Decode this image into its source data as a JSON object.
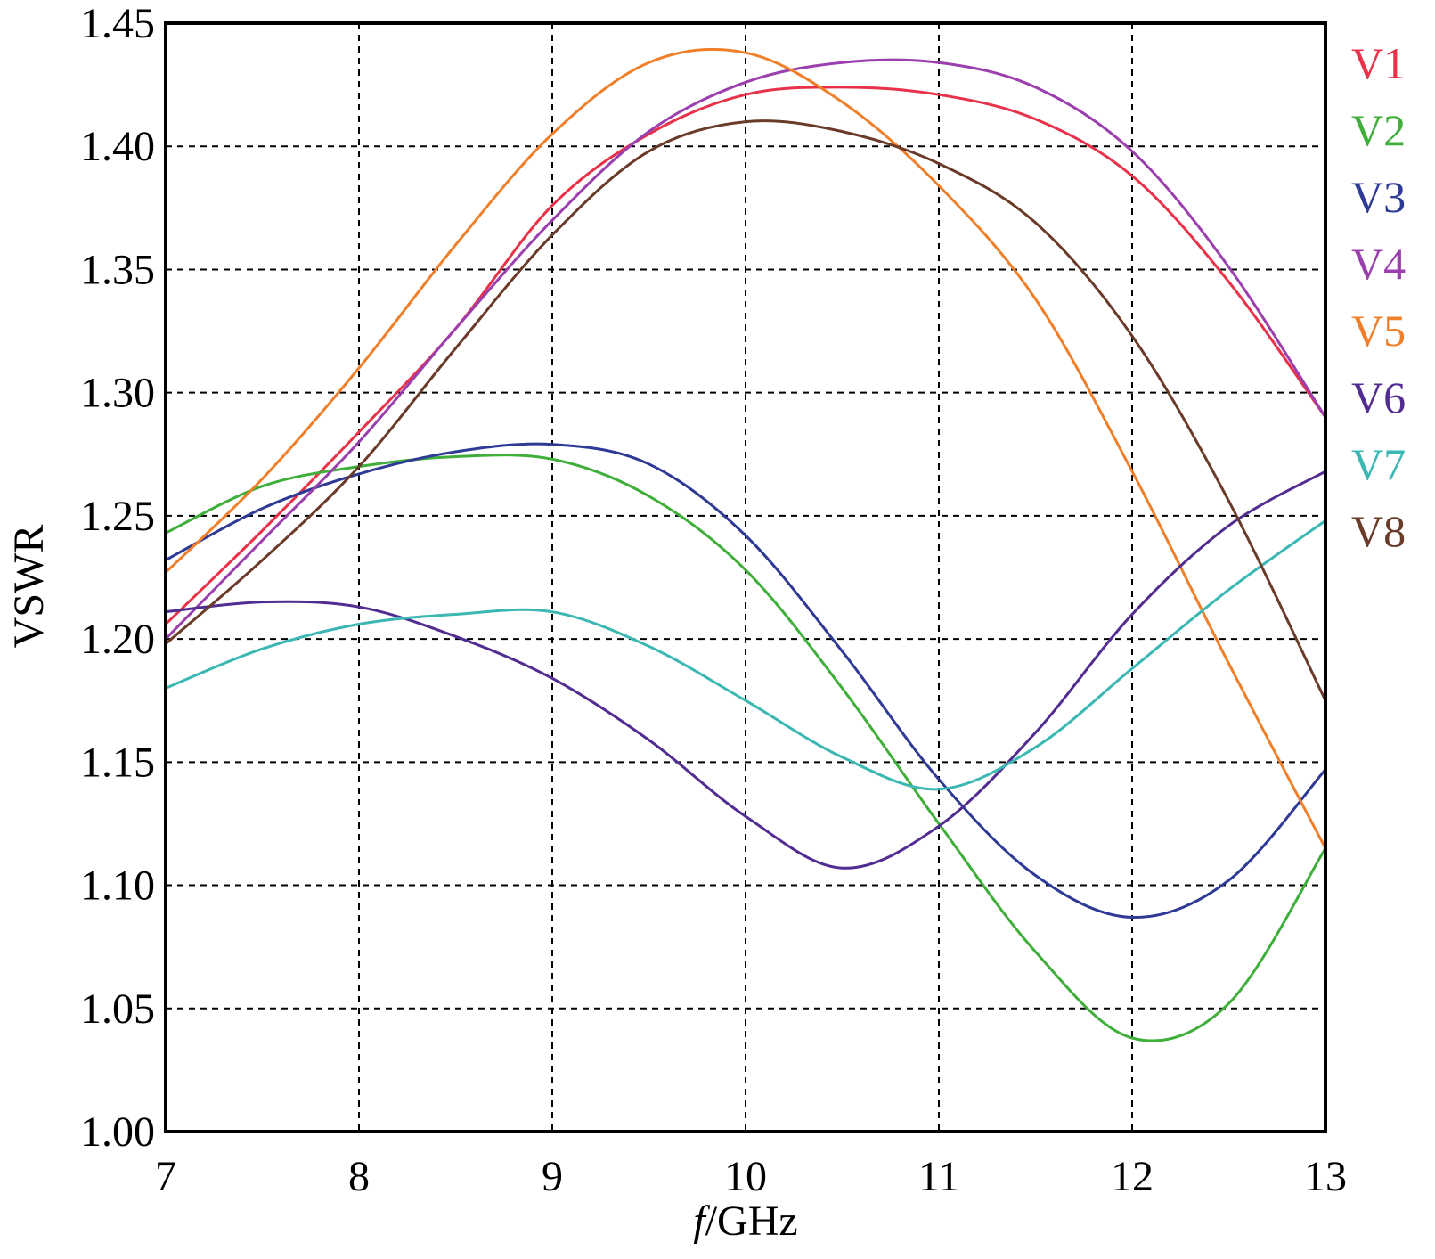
{
  "chart_data": {
    "type": "line",
    "title": "",
    "xlabel_italic": "f",
    "xlabel_rest": "/GHz",
    "ylabel": "VSWR",
    "xlim": [
      7,
      13
    ],
    "ylim": [
      1.0,
      1.45
    ],
    "grid": true,
    "legend_placement": "right",
    "x_ticks": [
      "7",
      "8",
      "9",
      "10",
      "11",
      "12",
      "13"
    ],
    "y_ticks": [
      "1.00",
      "1.05",
      "1.10",
      "1.15",
      "1.20",
      "1.25",
      "1.30",
      "1.35",
      "1.40",
      "1.45"
    ],
    "x": [
      7.0,
      7.5,
      8.0,
      8.5,
      9.0,
      9.5,
      10.0,
      10.5,
      11.0,
      11.5,
      12.0,
      12.5,
      13.0
    ],
    "series": [
      {
        "name": "V1",
        "color": "#e8324a",
        "values": [
          1.206,
          1.244,
          1.284,
          1.326,
          1.376,
          1.405,
          1.421,
          1.424,
          1.421,
          1.411,
          1.388,
          1.345,
          1.29
        ]
      },
      {
        "name": "V2",
        "color": "#3fae3a",
        "values": [
          1.243,
          1.262,
          1.27,
          1.274,
          1.273,
          1.258,
          1.228,
          1.18,
          1.125,
          1.073,
          1.038,
          1.052,
          1.115
        ]
      },
      {
        "name": "V3",
        "color": "#2e3a95",
        "values": [
          1.232,
          1.253,
          1.267,
          1.276,
          1.279,
          1.271,
          1.242,
          1.195,
          1.143,
          1.104,
          1.087,
          1.102,
          1.147
        ]
      },
      {
        "name": "V4",
        "color": "#9b3fae",
        "values": [
          1.2,
          1.24,
          1.28,
          1.326,
          1.37,
          1.406,
          1.426,
          1.434,
          1.434,
          1.424,
          1.398,
          1.351,
          1.29
        ]
      },
      {
        "name": "V5",
        "color": "#f07f2a",
        "values": [
          1.227,
          1.265,
          1.31,
          1.36,
          1.405,
          1.434,
          1.438,
          1.418,
          1.384,
          1.338,
          1.268,
          1.19,
          1.115
        ]
      },
      {
        "name": "V6",
        "color": "#522d91",
        "values": [
          1.211,
          1.215,
          1.213,
          1.201,
          1.184,
          1.159,
          1.128,
          1.107,
          1.124,
          1.162,
          1.21,
          1.246,
          1.268
        ]
      },
      {
        "name": "V7",
        "color": "#3bb7b4",
        "values": [
          1.18,
          1.196,
          1.206,
          1.21,
          1.211,
          1.197,
          1.175,
          1.152,
          1.139,
          1.156,
          1.188,
          1.22,
          1.248
        ]
      },
      {
        "name": "V8",
        "color": "#6b3b2a",
        "values": [
          1.198,
          1.232,
          1.27,
          1.318,
          1.364,
          1.398,
          1.41,
          1.406,
          1.393,
          1.369,
          1.323,
          1.256,
          1.175
        ]
      }
    ]
  }
}
